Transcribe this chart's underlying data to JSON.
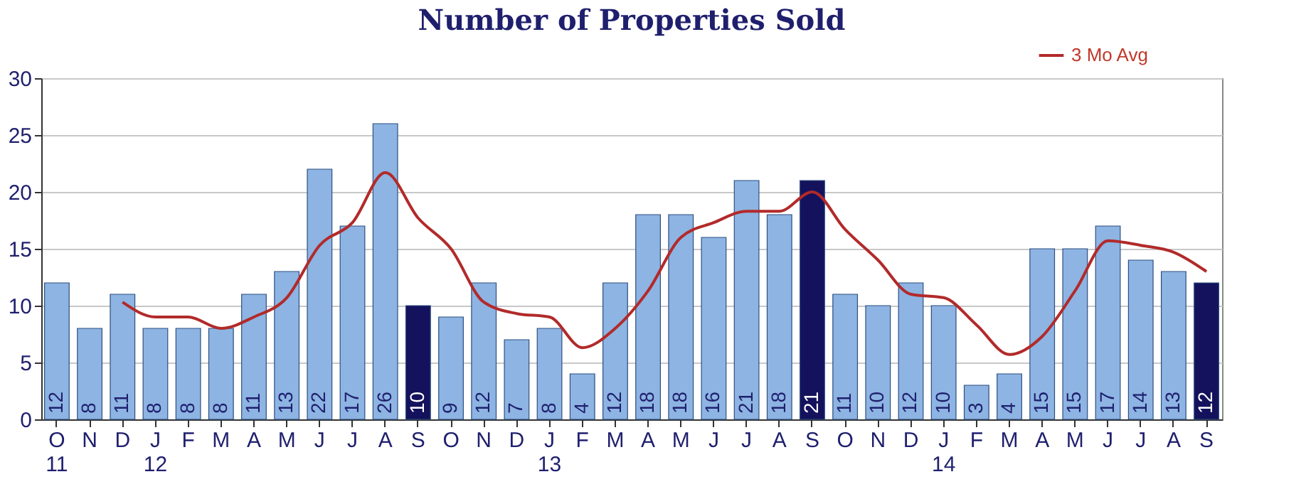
{
  "chart_data": {
    "type": "bar",
    "title": "Number of Properties Sold",
    "categories": [
      "O\n11",
      "N",
      "D",
      "J\n12",
      "F",
      "M",
      "A",
      "M",
      "J",
      "J",
      "A",
      "S",
      "O",
      "N",
      "D",
      "J\n13",
      "F",
      "M",
      "A",
      "M",
      "J",
      "J",
      "A",
      "S",
      "O",
      "N",
      "D",
      "J\n14",
      "F",
      "M",
      "A",
      "M",
      "J",
      "J",
      "A",
      "S"
    ],
    "series": [
      {
        "values": [
          12,
          8,
          11,
          8,
          8,
          8,
          11,
          13,
          22,
          17,
          26,
          10,
          9,
          12,
          7,
          8,
          4,
          12,
          18,
          18,
          16,
          21,
          18,
          21,
          11,
          10,
          12,
          10,
          3,
          4,
          15,
          15,
          17,
          14,
          13,
          12
        ],
        "value_labels": [
          "12",
          "8",
          "11",
          "8",
          "8",
          "8",
          "11",
          "13",
          "22",
          "17",
          "26",
          "10",
          "9",
          "12",
          "7",
          "8",
          "4",
          "12",
          "18",
          "18",
          "16",
          "21",
          "18",
          "21",
          "11",
          "10",
          "12",
          "10",
          "3",
          "4",
          "15",
          "15",
          "17",
          "14",
          "13",
          "12"
        ],
        "colors": [
          "#8db4e2",
          "#8db4e2",
          "#8db4e2",
          "#8db4e2",
          "#8db4e2",
          "#8db4e2",
          "#8db4e2",
          "#8db4e2",
          "#8db4e2",
          "#8db4e2",
          "#8db4e2",
          "#14125c",
          "#8db4e2",
          "#8db4e2",
          "#8db4e2",
          "#8db4e2",
          "#8db4e2",
          "#8db4e2",
          "#8db4e2",
          "#8db4e2",
          "#8db4e2",
          "#8db4e2",
          "#8db4e2",
          "#14125c",
          "#8db4e2",
          "#8db4e2",
          "#8db4e2",
          "#8db4e2",
          "#8db4e2",
          "#8db4e2",
          "#8db4e2",
          "#8db4e2",
          "#8db4e2",
          "#8db4e2",
          "#8db4e2",
          "#14125c"
        ]
      },
      {
        "type": "line",
        "name": "3 Mo Avg",
        "color": "#b22a2a",
        "values": [
          null,
          null,
          10.3,
          9,
          9,
          8,
          9,
          10.7,
          15.3,
          17.3,
          21.7,
          17.7,
          15,
          10.3,
          9.3,
          9,
          6.3,
          8,
          11.3,
          16,
          17.3,
          18.3,
          18.3,
          20,
          16.7,
          14,
          11,
          10.7,
          8.3,
          5.7,
          7.3,
          11.3,
          15.7,
          15.3,
          14.7,
          13
        ]
      }
    ],
    "ylim": [
      0,
      30
    ],
    "yticks": [
      0,
      5,
      10,
      15,
      20,
      25,
      30
    ],
    "grid": "y",
    "legend": "top right"
  }
}
